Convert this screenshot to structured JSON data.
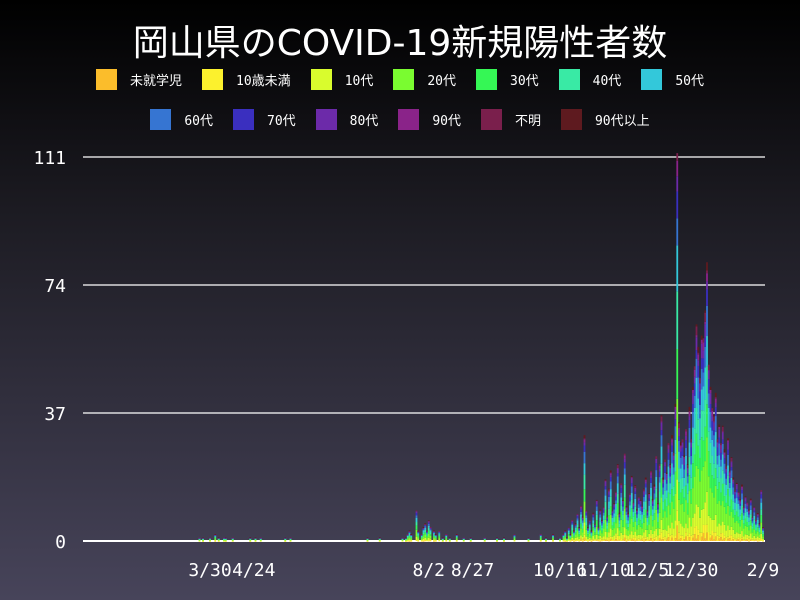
{
  "title": "岡山県のCOVID-19新規陽性者数",
  "legend": [
    {
      "label": "未就学児",
      "color": "#fbbd2b"
    },
    {
      "label": "10歳未満",
      "color": "#fcf12d"
    },
    {
      "label": "10代",
      "color": "#d9fc2d"
    },
    {
      "label": "20代",
      "color": "#7afc30"
    },
    {
      "label": "30代",
      "color": "#35f755"
    },
    {
      "label": "40代",
      "color": "#39eaa5"
    },
    {
      "label": "50代",
      "color": "#33c8da"
    },
    {
      "label": "60代",
      "color": "#3675d2"
    },
    {
      "label": "70代",
      "color": "#3a2fbf"
    },
    {
      "label": "80代",
      "color": "#6c2aa9"
    },
    {
      "label": "90代",
      "color": "#8a2389"
    },
    {
      "label": "不明",
      "color": "#7a1f4c"
    },
    {
      "label": "90代以上",
      "color": "#5e1a1f"
    }
  ],
  "chart_data": {
    "type": "bar",
    "stacked": true,
    "title": "岡山県のCOVID-19新規陽性者数",
    "ylim": [
      0,
      111
    ],
    "yticks": [
      "0",
      "37",
      "74",
      "111"
    ],
    "xticks": [
      {
        "label": "3/30",
        "date": "2020-03-30"
      },
      {
        "label": "4/24",
        "date": "2020-04-24"
      },
      {
        "label": "8/2",
        "date": "2020-08-02"
      },
      {
        "label": "8/27",
        "date": "2020-08-27"
      },
      {
        "label": "10/16",
        "date": "2020-10-16"
      },
      {
        "label": "11/10",
        "date": "2020-11-10"
      },
      {
        "label": "12/5",
        "date": "2020-12-05"
      },
      {
        "label": "12/30",
        "date": "2020-12-30"
      },
      {
        "label": "2/9",
        "date": "2021-02-09"
      }
    ],
    "grid": true,
    "legend_position": "top",
    "points": [
      [
        "2020-03-24",
        1
      ],
      [
        "2020-03-26",
        1
      ],
      [
        "2020-03-30",
        1
      ],
      [
        "2020-04-02",
        2
      ],
      [
        "2020-04-04",
        1
      ],
      [
        "2020-04-07",
        1
      ],
      [
        "2020-04-08",
        1
      ],
      [
        "2020-04-12",
        1
      ],
      [
        "2020-04-22",
        1
      ],
      [
        "2020-04-25",
        1
      ],
      [
        "2020-04-28",
        1
      ],
      [
        "2020-05-12",
        1
      ],
      [
        "2020-05-15",
        1
      ],
      [
        "2020-06-28",
        1
      ],
      [
        "2020-07-05",
        1
      ],
      [
        "2020-07-18",
        1
      ],
      [
        "2020-07-20",
        1
      ],
      [
        "2020-07-21",
        2
      ],
      [
        "2020-07-22",
        3
      ],
      [
        "2020-07-23",
        2
      ],
      [
        "2020-07-26",
        9
      ],
      [
        "2020-07-27",
        3
      ],
      [
        "2020-07-29",
        2
      ],
      [
        "2020-07-30",
        4
      ],
      [
        "2020-07-31",
        5
      ],
      [
        "2020-08-01",
        3
      ],
      [
        "2020-08-02",
        6
      ],
      [
        "2020-08-03",
        4
      ],
      [
        "2020-08-05",
        3
      ],
      [
        "2020-08-06",
        2
      ],
      [
        "2020-08-08",
        3
      ],
      [
        "2020-08-10",
        1
      ],
      [
        "2020-08-12",
        2
      ],
      [
        "2020-08-14",
        1
      ],
      [
        "2020-08-18",
        2
      ],
      [
        "2020-08-22",
        1
      ],
      [
        "2020-08-26",
        1
      ],
      [
        "2020-09-03",
        1
      ],
      [
        "2020-09-10",
        1
      ],
      [
        "2020-09-14",
        1
      ],
      [
        "2020-09-20",
        2
      ],
      [
        "2020-09-28",
        1
      ],
      [
        "2020-10-05",
        2
      ],
      [
        "2020-10-08",
        1
      ],
      [
        "2020-10-12",
        2
      ]
    ],
    "daily_by_month": [
      {
        "month": "2020-10",
        "from_day": 16,
        "values": [
          1,
          0,
          2,
          3,
          1,
          4,
          2,
          6,
          3,
          5,
          8,
          4,
          10,
          7,
          30,
          9
        ]
      },
      {
        "month": "2020-11",
        "from_day": 1,
        "values": [
          4,
          6,
          3,
          8,
          5,
          12,
          4,
          9,
          6,
          10,
          18,
          7,
          15,
          20,
          9,
          11,
          14,
          22,
          8,
          17,
          12,
          25,
          10,
          8,
          14,
          19,
          11,
          16,
          9,
          13
        ]
      },
      {
        "month": "2020-12",
        "from_day": 1,
        "values": [
          12,
          10,
          15,
          18,
          9,
          14,
          20,
          12,
          16,
          25,
          11,
          22,
          36,
          18,
          24,
          20,
          28,
          22,
          30,
          26,
          40,
          111,
          34,
          28,
          30,
          25,
          32,
          22,
          38,
          30,
          45
        ]
      },
      {
        "month": "2021-01",
        "from_day": 1,
        "values": [
          50,
          62,
          55,
          48,
          60,
          58,
          66,
          79,
          52,
          45,
          38,
          36,
          42,
          30,
          34,
          28,
          33,
          26,
          22,
          30,
          20,
          24,
          18,
          15,
          17,
          14,
          12,
          16,
          10,
          13,
          11
        ]
      },
      {
        "month": "2021-02",
        "from_day": 1,
        "values": [
          9,
          12,
          7,
          10,
          6,
          8,
          5,
          15,
          4
        ]
      }
    ]
  }
}
